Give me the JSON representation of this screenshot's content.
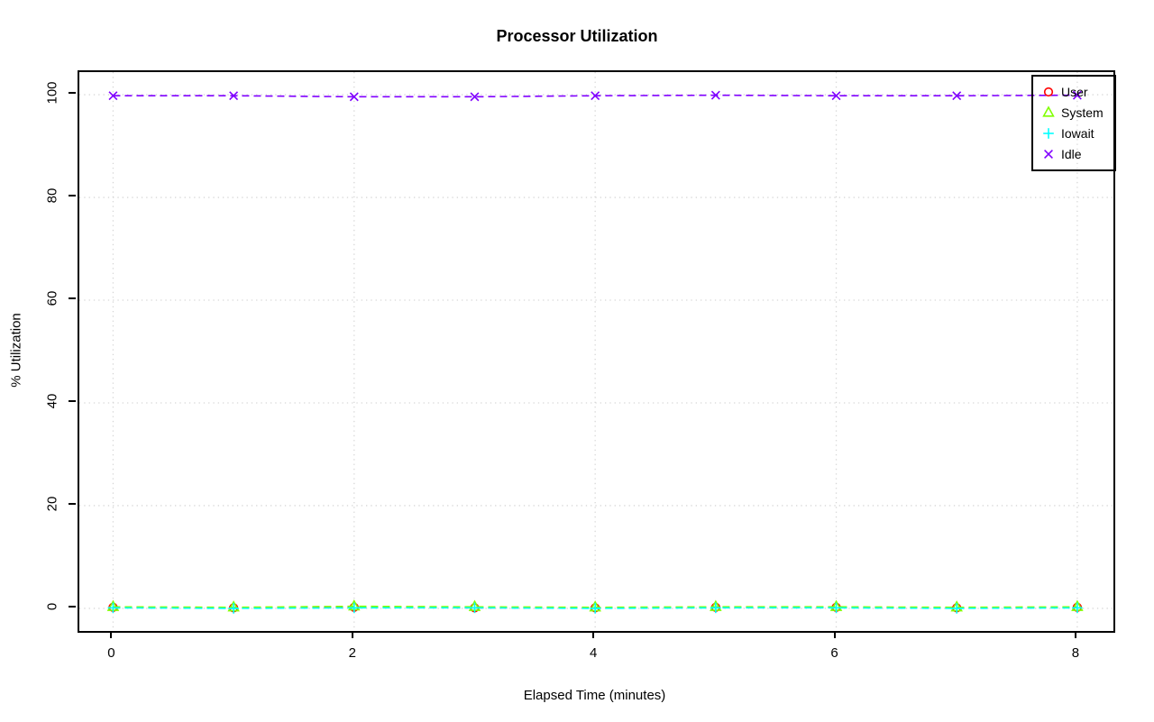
{
  "chart_data": {
    "type": "line",
    "title": "Processor Utilization",
    "xlabel": "Elapsed Time (minutes)",
    "ylabel": "% Utilization",
    "x": [
      0,
      1,
      2,
      3,
      4,
      5,
      6,
      7,
      8
    ],
    "series": [
      {
        "name": "User",
        "color": "#FF0000",
        "marker": "circle",
        "values": [
          0.2,
          0.1,
          0.2,
          0.1,
          0.1,
          0.2,
          0.2,
          0.1,
          0.2
        ]
      },
      {
        "name": "System",
        "color": "#80FF00",
        "marker": "triangle",
        "values": [
          0.3,
          0.2,
          0.4,
          0.3,
          0.2,
          0.3,
          0.3,
          0.2,
          0.3
        ]
      },
      {
        "name": "Iowait",
        "color": "#00FFFF",
        "marker": "plus",
        "values": [
          0.1,
          0.0,
          0.1,
          0.1,
          0.0,
          0.1,
          0.1,
          0.0,
          0.1
        ]
      },
      {
        "name": "Idle",
        "color": "#8000FF",
        "marker": "x",
        "values": [
          99.8,
          99.8,
          99.6,
          99.6,
          99.8,
          99.9,
          99.8,
          99.8,
          99.9
        ]
      }
    ],
    "xticks": [
      0,
      2,
      4,
      6,
      8
    ],
    "yticks": [
      0,
      20,
      40,
      60,
      80,
      100
    ],
    "xlim": [
      -0.28,
      8.3
    ],
    "ylim": [
      -4.4,
      104.4
    ],
    "grid": true,
    "grid_color": "#D6D6D6",
    "line_style": "dashed",
    "legend_position": "top-right",
    "background_color": "#FFFFFF",
    "axis_color": "#000000"
  }
}
